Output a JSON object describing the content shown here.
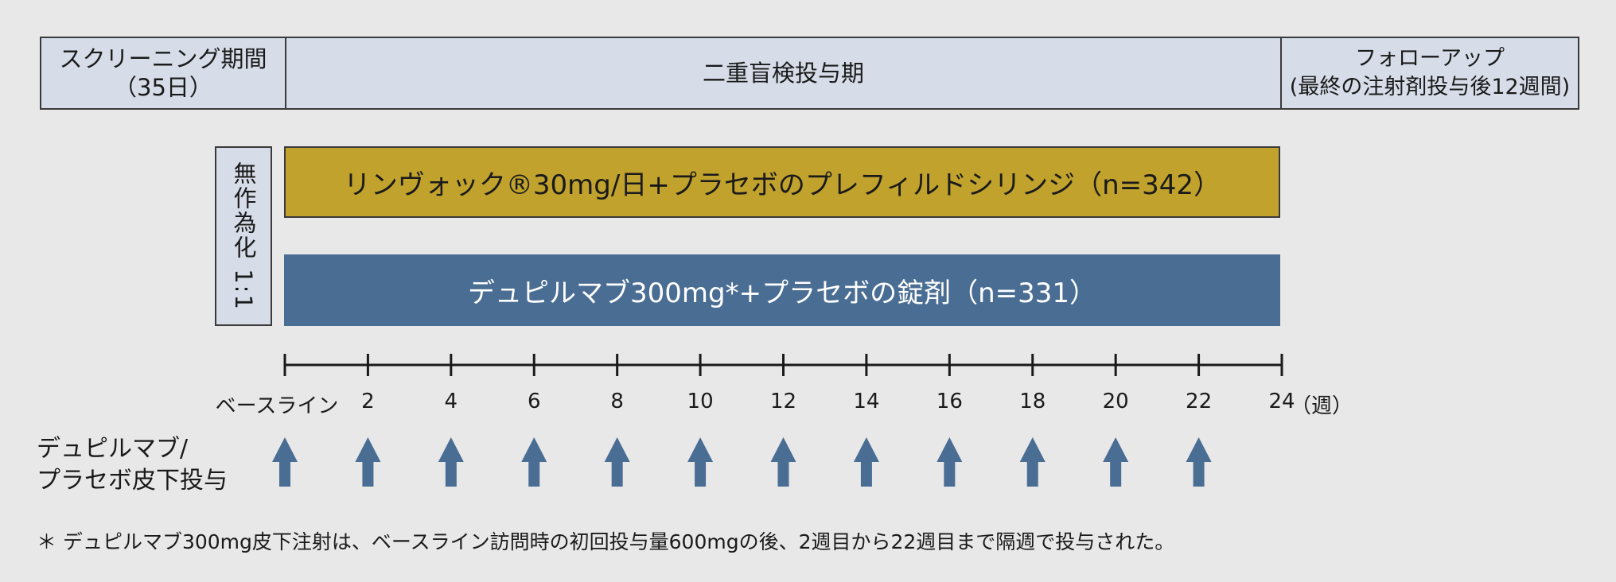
{
  "phases": {
    "screening": [
      "スクリーニング期間",
      "（35日）"
    ],
    "double_blind": "二重盲検投与期",
    "followup": [
      "フォローアップ",
      "(最終の注射剤投与後12週間)"
    ]
  },
  "randomization": "無作為化 1:1",
  "arms": [
    {
      "label": "リンヴォック®30mg/日+プラセボのプレフィルドシリンジ（n=342）",
      "color": "#c0a22d"
    },
    {
      "label": "デュピルマブ300mg*+プラセボの錠剤（n=331）",
      "color": "#4a6d94"
    }
  ],
  "timeline": {
    "tick_labels": [
      "ベースライン",
      "2",
      "4",
      "6",
      "8",
      "10",
      "12",
      "14",
      "16",
      "18",
      "20",
      "22",
      "24"
    ],
    "unit": "（週）"
  },
  "dose_label": [
    "デュピルマブ/",
    "プラセボ皮下投与"
  ],
  "dose_weeks": [
    0,
    2,
    4,
    6,
    8,
    10,
    12,
    14,
    16,
    18,
    20,
    22
  ],
  "arrow_color": "#4a6d94",
  "footnote": "＊ デュピルマブ300mg皮下注射は、ベースライン訪問時の初回投与量600mgの後、2週目から22週目まで隔週で投与された。"
}
